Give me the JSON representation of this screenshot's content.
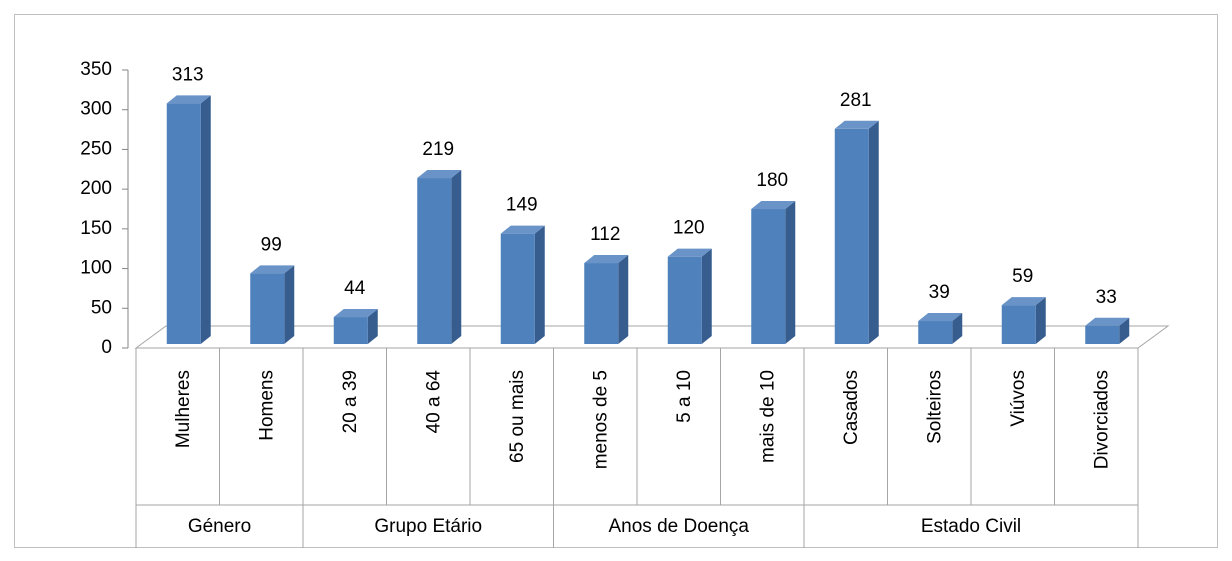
{
  "chart_data": {
    "type": "bar3d",
    "groups": [
      {
        "name": "Género",
        "categories": [
          "Mulheres",
          "Homens"
        ]
      },
      {
        "name": "Grupo Etário",
        "categories": [
          "20 a 39",
          "40 a 64",
          "65 ou mais"
        ]
      },
      {
        "name": "Anos de Doença",
        "categories": [
          "menos de 5",
          "5 a 10",
          "mais de 10"
        ]
      },
      {
        "name": "Estado Civil",
        "categories": [
          "Casados",
          "Solteiros",
          "Viúvos",
          "Divorciados"
        ]
      }
    ],
    "values": [
      313,
      99,
      44,
      219,
      149,
      112,
      120,
      180,
      281,
      39,
      59,
      33
    ],
    "color": "#4f81bd",
    "ylim": [
      0,
      350
    ],
    "yticks": [
      0,
      50,
      100,
      150,
      200,
      250,
      300,
      350
    ]
  }
}
